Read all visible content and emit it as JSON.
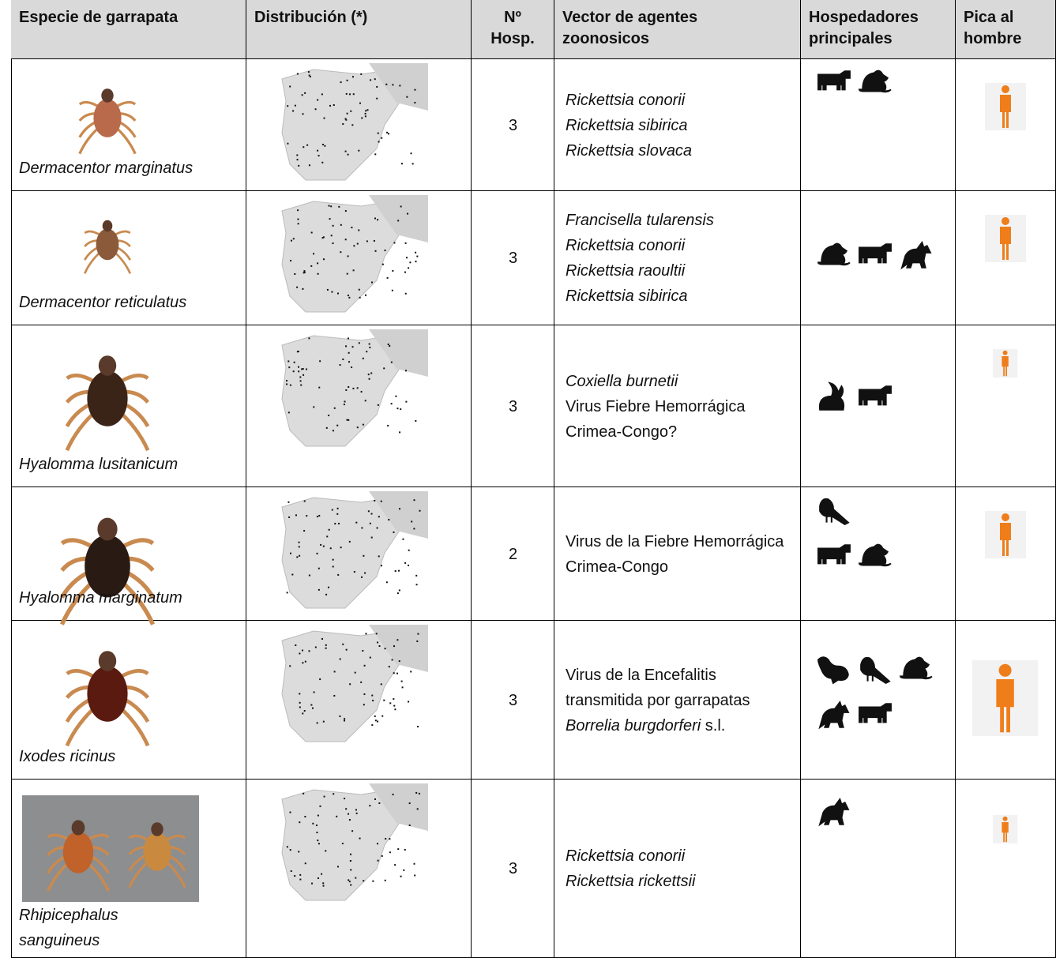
{
  "table": {
    "header": [
      "Especie de garrapata",
      "Distribución (*)",
      "Nº Hosp.",
      "Vector de agentes zoonosicos",
      "Hospedadores principales",
      "Pica al hombre"
    ],
    "rows": [
      {
        "species": "Dermacentor marginatus",
        "hosts": 3,
        "agents": [
          [
            {
              "text": "Rickettsia conorii",
              "italic": true
            }
          ],
          [
            {
              "text": "Rickettsia sibirica",
              "italic": true
            }
          ],
          [
            {
              "text": "Rickettsia slovaca",
              "italic": true
            }
          ]
        ]
      },
      {
        "species": "Dermacentor reticulatus",
        "hosts": 3,
        "agents": [
          [
            {
              "text": "Francisella tularensis",
              "italic": true
            }
          ],
          [
            {
              "text": "Rickettsia conorii",
              "italic": true
            }
          ],
          [
            {
              "text": "Rickettsia raoultii",
              "italic": true
            }
          ],
          [
            {
              "text": "Rickettsia sibirica",
              "italic": true
            }
          ]
        ]
      },
      {
        "species": "Hyalomma lusitanicum",
        "hosts": 3,
        "agents": [
          [
            {
              "text": "Coxiella burnetii",
              "italic": true
            }
          ],
          [
            {
              "text": "Virus Fiebre Hemorrágica Crimea-Congo?",
              "italic": false
            }
          ]
        ]
      },
      {
        "species": "Hyalomma marginatum",
        "hosts": 2,
        "agents": [
          [
            {
              "text": "Virus de la Fiebre Hemorrágica Crimea-Congo",
              "italic": false
            }
          ]
        ]
      },
      {
        "species": "Ixodes ricinus",
        "hosts": 3,
        "agents": [
          [
            {
              "text": "Virus de la Encefalitis transmitida por garrapatas",
              "italic": false
            }
          ],
          [
            {
              "text": "Borrelia burgdorferi",
              "italic": true
            },
            {
              "text": "s.l.",
              "italic": false
            }
          ]
        ]
      },
      {
        "species": "Rhipicephalus sanguineus",
        "hosts": 3,
        "agents": [
          [
            {
              "text": "Rickettsia conorii",
              "italic": true
            }
          ],
          [
            {
              "text": "Rickettsia rickettsii",
              "italic": true
            }
          ]
        ]
      }
    ]
  }
}
